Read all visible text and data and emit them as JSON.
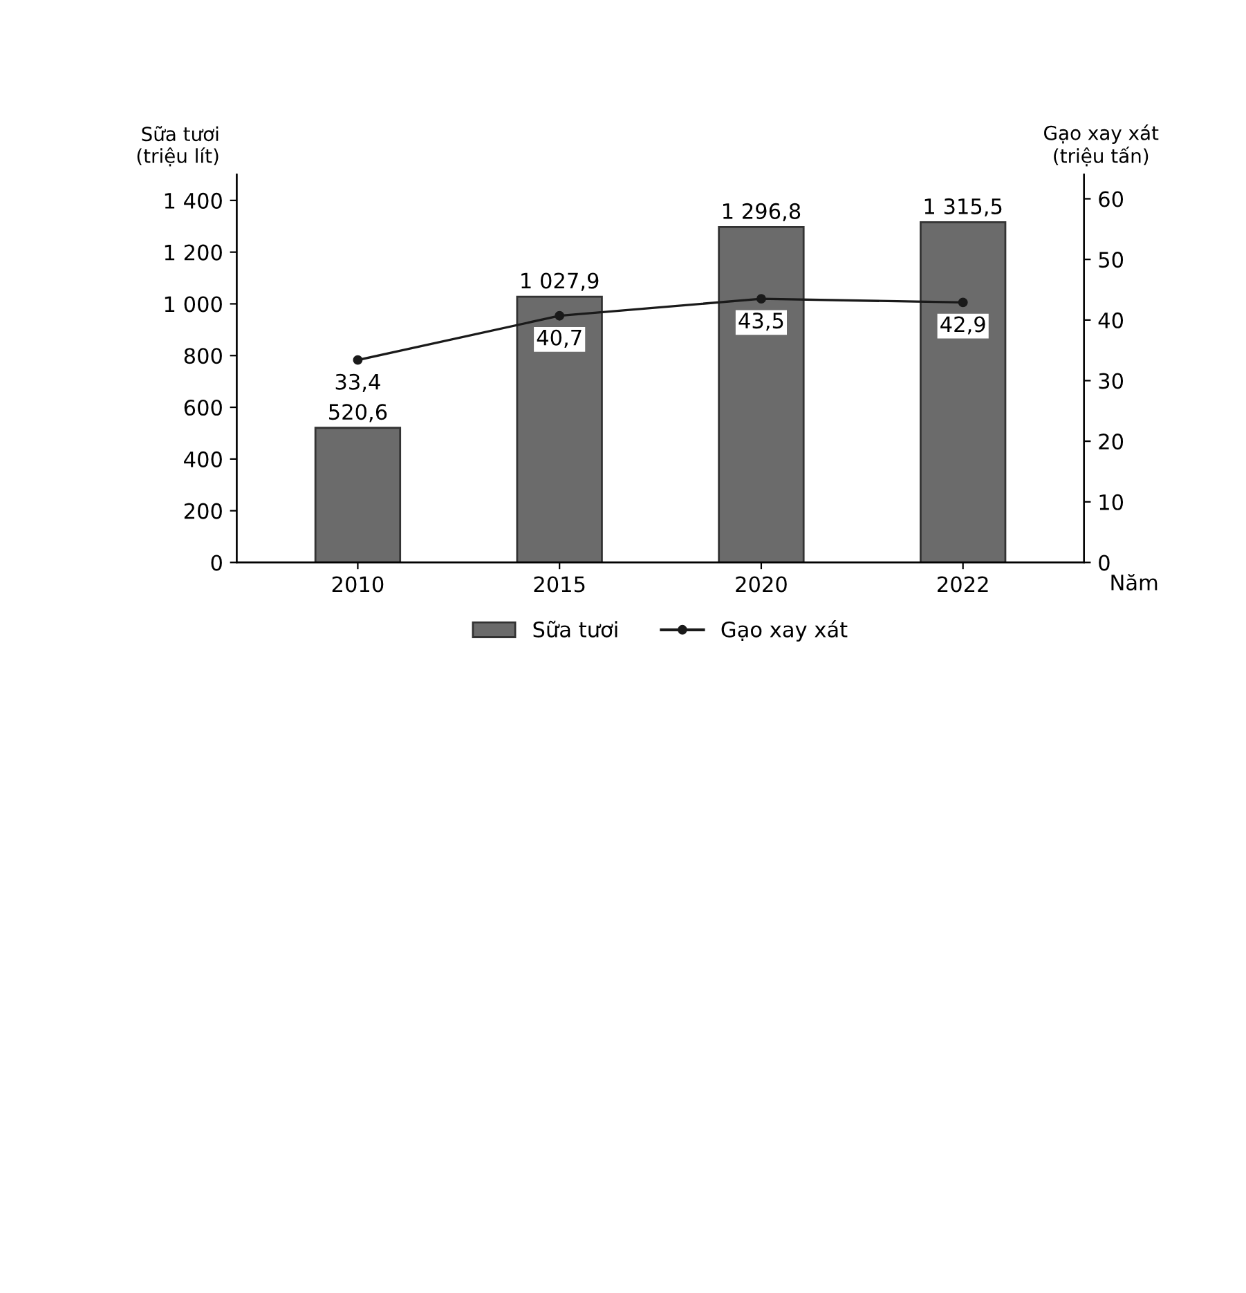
{
  "chart_data": {
    "type": "bar",
    "categories": [
      "2010",
      "2015",
      "2020",
      "2022"
    ],
    "xlabel": "Năm",
    "ylabel": "Sữa tươi\n(triệu lít)",
    "y2label": "Gạo xay xát\n(triệu tấn)",
    "series": [
      {
        "name": "Sữa tươi",
        "color": "#6b6b6b",
        "values": [
          520.6,
          1027.9,
          1296.8,
          1315.5
        ],
        "value_labels": [
          "520,6",
          "1 027,9",
          "1 296,8",
          "1 315,5"
        ]
      },
      {
        "name": "Gạo xay xát",
        "type": "line",
        "axis": "y2",
        "color": "#1a1a1a",
        "marker": "circle",
        "values": [
          33.4,
          40.7,
          43.5,
          42.9
        ],
        "value_labels": [
          "33,4",
          "40,7",
          "43,5",
          "42,9"
        ]
      }
    ],
    "ylim": [
      0,
      1500
    ],
    "yticks": [
      0,
      200,
      400,
      600,
      800,
      {
        "value": 1000,
        "label": "1 000"
      },
      {
        "value": 1200,
        "label": "1 200"
      },
      {
        "value": 1400,
        "label": "1 400"
      }
    ],
    "y2lim": [
      0,
      64
    ],
    "y2ticks": [
      0,
      10,
      20,
      30,
      40,
      50,
      60
    ],
    "grid": false,
    "legend": "bottom"
  }
}
